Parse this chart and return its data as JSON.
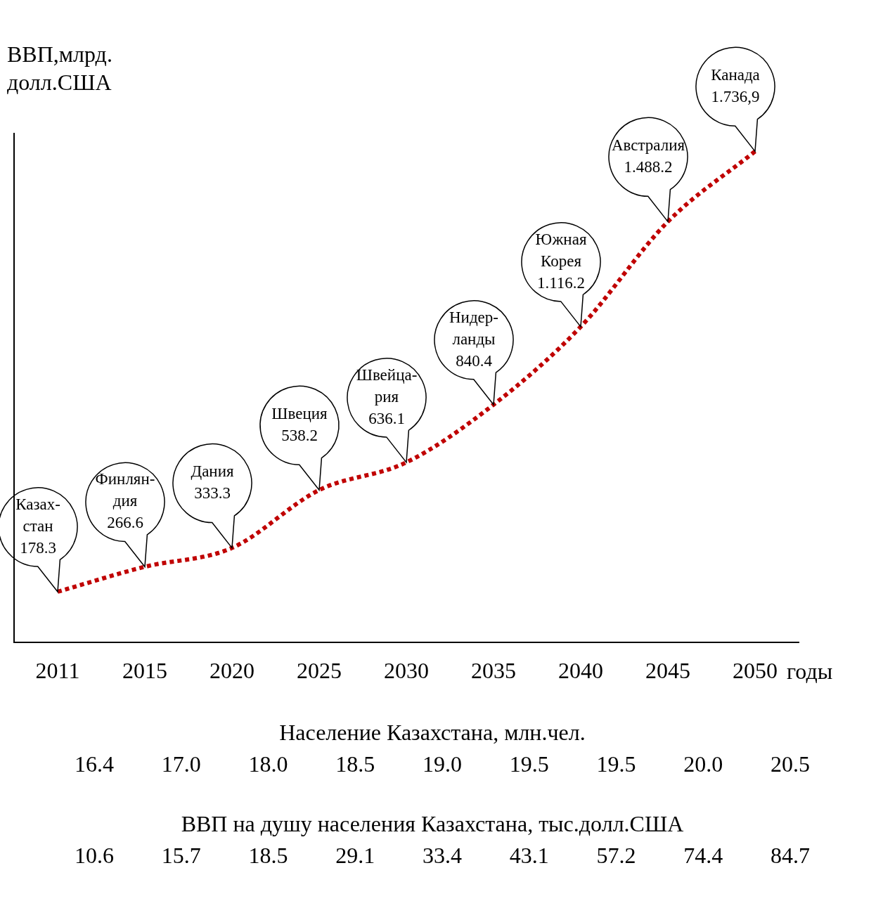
{
  "chart_data": [
    {
      "type": "line",
      "xlabel": "годы",
      "ylabel": "ВВП,млрд.\nдолл.США",
      "categories": [
        "2011",
        "2015",
        "2020",
        "2025",
        "2030",
        "2035",
        "2040",
        "2045",
        "2050"
      ],
      "series": [
        {
          "color": "#c00000",
          "values": [
            178.3,
            266.6,
            333.3,
            538.2,
            636.1,
            840.4,
            1116.2,
            1488.2,
            1736.9
          ],
          "value_labels": [
            "178.3",
            "266.6",
            "333.3",
            "538.2",
            "636.1",
            "840.4",
            "1.116.2",
            "1.488.2",
            "1.736,9"
          ]
        }
      ],
      "annotations": [
        "Казах-\nстан",
        "Финлян-\nдия",
        "Дания",
        "Швеция",
        "Швейца-\nрия",
        "Нидер-\nланды",
        "Южная\nКорея",
        "Австралия",
        "Канада"
      ],
      "line_style": "dotted",
      "marker": "none",
      "grid": false,
      "legend": false,
      "tick_labels": "x"
    },
    {
      "type": "other",
      "title": "Население Казахстана, млн.чел.",
      "values": [
        16.4,
        17.0,
        18.0,
        18.5,
        19.0,
        19.5,
        19.5,
        20.0,
        20.5
      ],
      "value_labels": [
        "16.4",
        "17.0",
        "18.0",
        "18.5",
        "19.0",
        "19.5",
        "19.5",
        "20.0",
        "20.5"
      ],
      "data_labels": true
    },
    {
      "type": "other",
      "title": "ВВП на душу населения Казахстана, тыс.долл.США",
      "values": [
        10.6,
        15.7,
        18.5,
        29.1,
        33.4,
        43.1,
        57.2,
        74.4,
        84.7
      ],
      "value_labels": [
        "10.6",
        "15.7",
        "18.5",
        "29.1",
        "33.4",
        "43.1",
        "57.2",
        "74.4",
        "84.7"
      ],
      "data_labels": true
    }
  ]
}
